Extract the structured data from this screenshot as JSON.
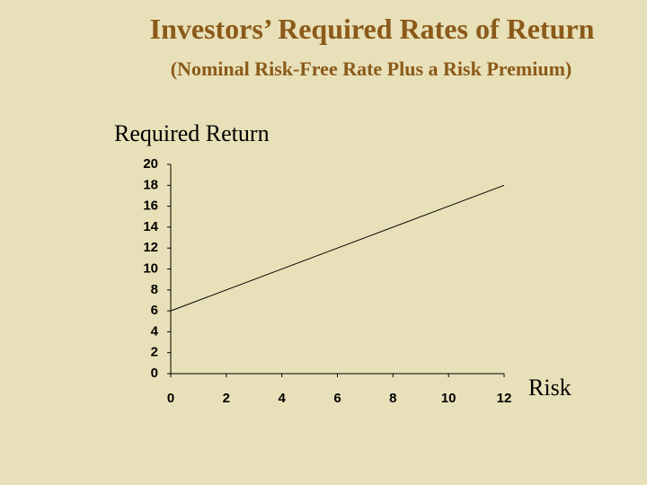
{
  "chart_data": {
    "type": "line",
    "title": "Investors’ Required Rates of Return",
    "subtitle": "(Nominal Risk-Free Rate Plus a Risk Premium)",
    "y_label": "Required Return",
    "x_label": "Risk",
    "x": [
      0,
      12
    ],
    "series": [
      {
        "name": "Required Return",
        "color": "#000000",
        "values": [
          6,
          18
        ]
      }
    ],
    "xlim": [
      0,
      12
    ],
    "xticks": [
      0,
      2,
      4,
      6,
      8,
      10,
      12
    ],
    "ylim": [
      0,
      20
    ],
    "yticks": [
      0,
      2,
      4,
      6,
      8,
      10,
      12,
      14,
      16,
      18,
      20
    ]
  }
}
